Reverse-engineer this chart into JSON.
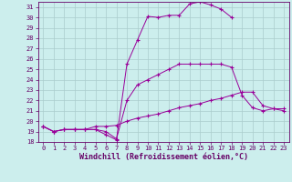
{
  "xlabel": "Windchill (Refroidissement éolien,°C)",
  "xlim": [
    -0.5,
    23.5
  ],
  "ylim": [
    18,
    31.5
  ],
  "yticks": [
    18,
    19,
    20,
    21,
    22,
    23,
    24,
    25,
    26,
    27,
    28,
    29,
    30,
    31
  ],
  "xticks": [
    0,
    1,
    2,
    3,
    4,
    5,
    6,
    7,
    8,
    9,
    10,
    11,
    12,
    13,
    14,
    15,
    16,
    17,
    18,
    19,
    20,
    21,
    22,
    23
  ],
  "bg_color": "#cceeed",
  "grid_color": "#aacccc",
  "line_color": "#990099",
  "lines": {
    "line1_x": [
      0,
      1,
      2,
      3,
      4,
      5,
      6,
      7,
      8,
      9,
      10,
      11,
      12,
      13,
      14,
      15,
      16,
      17,
      18
    ],
    "line1_y": [
      19.5,
      19.0,
      19.2,
      19.2,
      19.2,
      19.2,
      18.7,
      18.2,
      25.5,
      27.8,
      30.1,
      30.0,
      30.2,
      30.2,
      31.3,
      31.5,
      31.2,
      30.8,
      30.0
    ],
    "line2_x": [
      0,
      1,
      2,
      3,
      4,
      5,
      6,
      7,
      8,
      9,
      10,
      11,
      12,
      13,
      14,
      15,
      16,
      17,
      18,
      19,
      20,
      21,
      22,
      23
    ],
    "line2_y": [
      19.5,
      19.0,
      19.2,
      19.2,
      19.2,
      19.2,
      19.0,
      18.3,
      22.0,
      23.5,
      24.0,
      24.5,
      25.0,
      25.5,
      25.5,
      25.5,
      25.5,
      25.5,
      25.2,
      22.5,
      21.3,
      21.0,
      21.2,
      21.2
    ],
    "line3_x": [
      0,
      1,
      2,
      3,
      4,
      5,
      6,
      7,
      8,
      9,
      10,
      11,
      12,
      13,
      14,
      15,
      16,
      17,
      18,
      19,
      20,
      21,
      22,
      23
    ],
    "line3_y": [
      19.5,
      19.0,
      19.2,
      19.2,
      19.2,
      19.5,
      19.5,
      19.6,
      20.0,
      20.3,
      20.5,
      20.7,
      21.0,
      21.3,
      21.5,
      21.7,
      22.0,
      22.2,
      22.5,
      22.8,
      22.8,
      21.5,
      21.2,
      21.0
    ]
  },
  "figsize": [
    3.2,
    2.0
  ],
  "dpi": 100,
  "tick_fontsize": 5.0,
  "label_fontsize": 6.0
}
